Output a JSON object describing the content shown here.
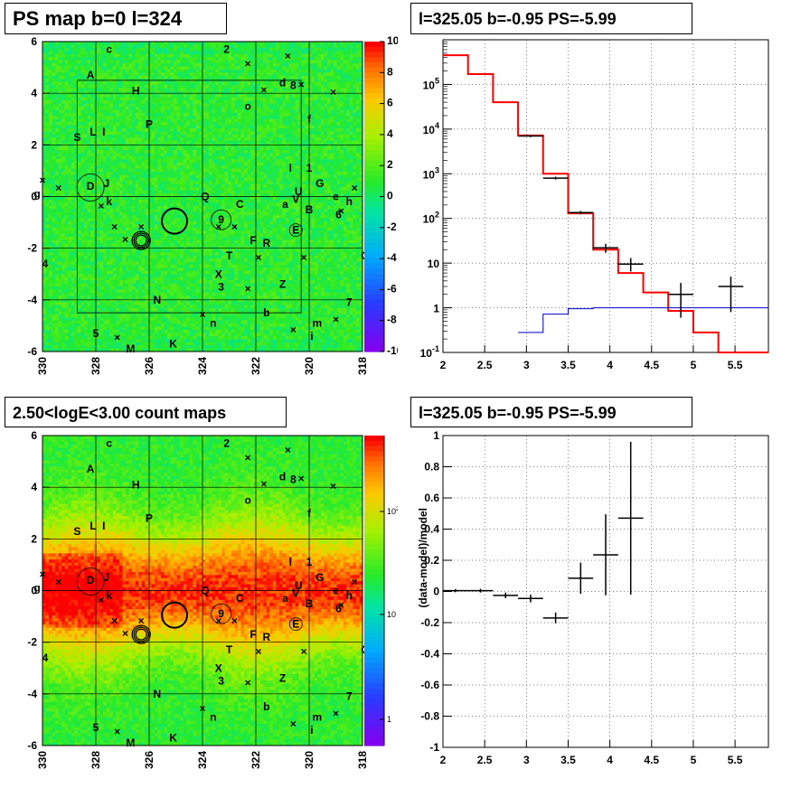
{
  "panels": {
    "top_left_title": "PS map b=0 l=324",
    "top_right_title": "l=325.05 b=-0.95 PS=-5.99",
    "bottom_left_title": "2.50<logE<3.00 count maps",
    "bottom_right_title": "l=325.05 b=-0.95 PS=-5.99"
  },
  "chart_data": [
    {
      "type": "heatmap",
      "title": "PS map b=0 l=324",
      "x_ticks": [
        "330",
        "328",
        "326",
        "324",
        "322",
        "320",
        "318"
      ],
      "y_ticks": [
        "6",
        "4",
        "2",
        "0",
        "-2",
        "-4",
        "-6"
      ],
      "xlim": [
        330,
        318
      ],
      "ylim": [
        -6,
        6
      ],
      "colorbar_ticks": [
        "10",
        "8",
        "6",
        "4",
        "2",
        "0",
        "-2",
        "-4",
        "-6",
        "-8",
        "-10"
      ],
      "colorbar_range": [
        -10,
        10
      ],
      "source_labels": [
        "c",
        "2",
        "A",
        "d",
        "8",
        "H",
        "o",
        "P",
        "f",
        "S",
        "L",
        "I",
        "1",
        "l",
        "G",
        "g",
        "D",
        "J",
        "U",
        "e",
        "Q",
        "V",
        "h",
        "k",
        "C",
        "a",
        "B",
        "6",
        "9",
        "E",
        "F",
        "R",
        "T",
        "O",
        "4",
        "X",
        "Z",
        "3",
        "N",
        "7",
        "b",
        "n",
        "m",
        "5",
        "i",
        "M",
        "K"
      ]
    },
    {
      "type": "line",
      "title": "l=325.05 b=-0.95 PS=-5.99",
      "x_ticks": [
        "2",
        "2.5",
        "3",
        "3.5",
        "4",
        "4.5",
        "5",
        "5.5"
      ],
      "y_ticks": [
        "10^-1",
        "1",
        "10",
        "10^2",
        "10^3",
        "10^4",
        "10^5"
      ],
      "xlim": [
        2,
        5.9
      ],
      "ylim": [
        0.1,
        1000000
      ],
      "yscale": "log",
      "grid": true,
      "series": [
        {
          "name": "",
          "color": "#ff0000",
          "kind": "step",
          "x_edges": [
            2.0,
            2.3,
            2.6,
            2.9,
            3.2,
            3.5,
            3.8,
            4.1,
            4.4,
            4.7,
            5.0,
            5.3,
            5.9
          ],
          "values": [
            450000,
            170000,
            40000,
            7200,
            1000,
            130,
            20,
            6,
            2.2,
            0.85,
            0.28,
            0.1
          ]
        },
        {
          "name": "",
          "color": "#0000cc",
          "kind": "step",
          "x_edges": [
            2.9,
            3.2,
            3.5,
            3.8,
            5.9
          ],
          "values": [
            0.28,
            0.72,
            0.95,
            1.0
          ]
        },
        {
          "name": "",
          "color": "#000000",
          "kind": "errorbars",
          "x": [
            3.05,
            3.35,
            3.65,
            3.95,
            4.25,
            4.85,
            5.45
          ],
          "y": [
            7000,
            800,
            135,
            22,
            9.5,
            2.0,
            3.0
          ],
          "xerr": [
            0.15,
            0.15,
            0.15,
            0.15,
            0.15,
            0.15,
            0.15
          ],
          "yerr_low": [
            400,
            60,
            12,
            5,
            3,
            1.4,
            2.2
          ],
          "yerr_high": [
            400,
            60,
            12,
            5,
            3.5,
            1.6,
            2.0
          ]
        }
      ]
    },
    {
      "type": "heatmap",
      "title": "2.50<logE<3.00 count maps",
      "x_ticks": [
        "330",
        "328",
        "326",
        "324",
        "322",
        "320",
        "318"
      ],
      "y_ticks": [
        "6",
        "4",
        "2",
        "0",
        "-2",
        "-4",
        "-6"
      ],
      "xlim": [
        330,
        318
      ],
      "ylim": [
        -6,
        6
      ],
      "colorbar_ticks": [
        "10^2",
        "10",
        "1"
      ],
      "colorbar_scale": "log",
      "source_labels": [
        "c",
        "2",
        "A",
        "d",
        "8",
        "H",
        "o",
        "P",
        "f",
        "S",
        "L",
        "I",
        "1",
        "l",
        "G",
        "g",
        "D",
        "J",
        "U",
        "e",
        "Q",
        "V",
        "h",
        "k",
        "C",
        "a",
        "B",
        "6",
        "9",
        "E",
        "F",
        "R",
        "T",
        "O",
        "4",
        "X",
        "Z",
        "3",
        "N",
        "7",
        "b",
        "n",
        "m",
        "5",
        "i",
        "M",
        "K"
      ]
    },
    {
      "type": "scatter",
      "title": "l=325.05 b=-0.95 PS=-5.99",
      "ylabel": "(data-model)/model",
      "x_ticks": [
        "2",
        "2.5",
        "3",
        "3.5",
        "4",
        "4.5",
        "5",
        "5.5"
      ],
      "y_ticks": [
        "1",
        "0.8",
        "0.6",
        "0.4",
        "0.2",
        "0",
        "-0.2",
        "-0.4",
        "-0.6",
        "-0.8",
        "-1"
      ],
      "xlim": [
        2,
        5.9
      ],
      "ylim": [
        -1,
        1
      ],
      "grid": true,
      "series": [
        {
          "name": "",
          "color": "#000000",
          "kind": "errorbars",
          "x": [
            2.15,
            2.45,
            2.75,
            3.05,
            3.35,
            3.65,
            3.95,
            4.25
          ],
          "y": [
            0.005,
            0.005,
            -0.025,
            -0.045,
            -0.17,
            0.085,
            0.235,
            0.47
          ],
          "xerr": [
            0.15,
            0.15,
            0.15,
            0.15,
            0.15,
            0.15,
            0.15,
            0.15
          ],
          "yerr": [
            0.01,
            0.012,
            0.018,
            0.025,
            0.035,
            0.1,
            0.26,
            0.49
          ]
        }
      ]
    }
  ]
}
